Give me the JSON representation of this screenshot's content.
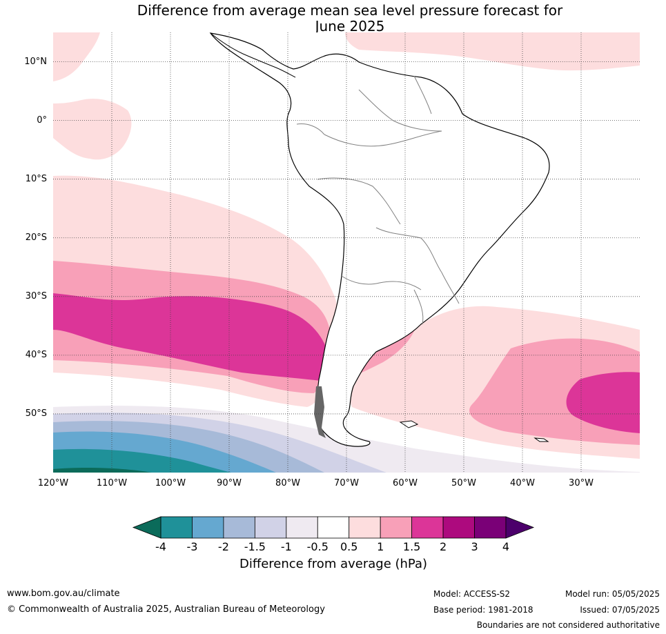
{
  "title": {
    "line1": "Difference from average mean sea level pressure forecast for",
    "line2": "June 2025"
  },
  "map": {
    "region": "South America",
    "lat_labels": [
      {
        "text": "10°N",
        "lat": 10
      },
      {
        "text": "0°",
        "lat": 0
      },
      {
        "text": "10°S",
        "lat": -10
      },
      {
        "text": "20°S",
        "lat": -20
      },
      {
        "text": "30°S",
        "lat": -30
      },
      {
        "text": "40°S",
        "lat": -40
      },
      {
        "text": "50°S",
        "lat": -50
      }
    ],
    "lon_labels": [
      {
        "text": "120°W",
        "lon": -120
      },
      {
        "text": "110°W",
        "lon": -110
      },
      {
        "text": "100°W",
        "lon": -100
      },
      {
        "text": "90°W",
        "lon": -90
      },
      {
        "text": "80°W",
        "lon": -80
      },
      {
        "text": "70°W",
        "lon": -70
      },
      {
        "text": "60°W",
        "lon": -60
      },
      {
        "text": "50°W",
        "lon": -50
      },
      {
        "text": "40°W",
        "lon": -40
      },
      {
        "text": "30°W",
        "lon": -30
      }
    ],
    "extent": {
      "lon_min": -120,
      "lon_max": -20,
      "lat_min": -60,
      "lat_max": 15
    },
    "grid": "dotted"
  },
  "colorbar": {
    "label": "Difference from average (hPa)",
    "ticks": [
      "-4",
      "-3",
      "-2",
      "-1.5",
      "-1",
      "-0.5",
      "0.5",
      "1",
      "1.5",
      "2",
      "3",
      "4"
    ],
    "colors": {
      "lt_-4": "#0b6b5a",
      "-4_-3": "#1f9199",
      "-3_-2": "#65a8d0",
      "-2_-1.5": "#a7bad8",
      "-1.5_-1": "#d1d2e7",
      "-1_-0.5": "#efeaf1",
      "-0.5_0.5": "#ffffff",
      "0.5_1": "#fdddde",
      "1_1.5": "#f8a0b8",
      "1.5_2": "#dc3598",
      "2_3": "#ad0a7e",
      "3_4": "#7a0077",
      "gt_4": "#4c006b"
    },
    "extend": "both"
  },
  "footer": {
    "site": "www.bom.gov.au/climate",
    "copyright": "© Commonwealth of Australia 2025, Australian Bureau of Meteorology",
    "model": "Model: ACCESS-S2",
    "base_period": "Base period: 1981-2018",
    "model_run": "Model run: 05/05/2025",
    "issued": "Issued: 07/05/2025",
    "disclaimer": "Boundaries are not considered authoritative"
  }
}
